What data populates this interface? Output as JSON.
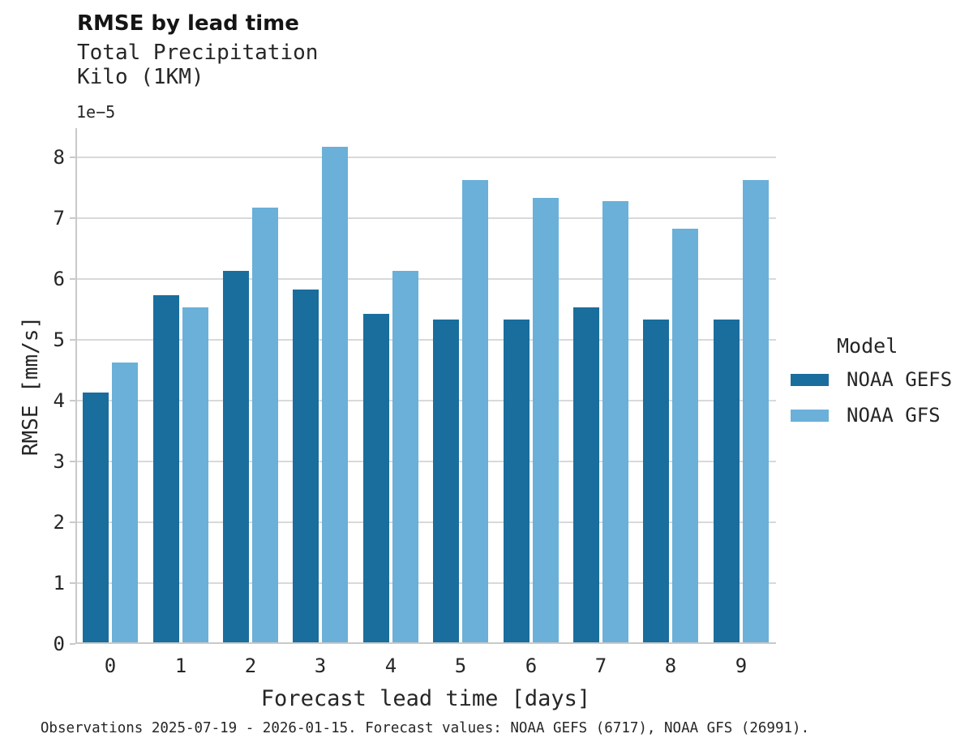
{
  "chart_data": {
    "type": "bar",
    "title": "RMSE by lead time",
    "subtitle": "Total Precipitation\nKilo (1KM)",
    "axis_offset_label": "1e−5",
    "y_unit_multiplier": "1e-5",
    "xlabel": "Forecast lead time [days]",
    "ylabel": "RMSE [mm/s]",
    "categories": [
      "0",
      "1",
      "2",
      "3",
      "4",
      "5",
      "6",
      "7",
      "8",
      "9"
    ],
    "series": [
      {
        "name": "NOAA GEFS",
        "color": "#1a6e9d",
        "values": [
          4.1,
          5.7,
          6.1,
          5.8,
          5.4,
          5.3,
          5.3,
          5.5,
          5.3,
          5.3
        ]
      },
      {
        "name": "NOAA GFS",
        "color": "#6ab0d8",
        "values": [
          4.6,
          5.5,
          7.15,
          8.15,
          6.1,
          7.6,
          7.3,
          7.25,
          6.8,
          7.6
        ]
      }
    ],
    "ylim": [
      0,
      8.48
    ],
    "yticks": [
      0,
      1,
      2,
      3,
      4,
      5,
      6,
      7,
      8
    ],
    "grid": "horizontal gridlines, light gray, axis below bars",
    "legend_title": "Model",
    "legend_position": "right",
    "caption": "Observations 2025-07-19 - 2026-01-15. Forecast values: NOAA GEFS (6717), NOAA GFS (26991)."
  },
  "colors": {
    "noaa_gefs": "#1a6e9d",
    "noaa_gfs": "#6ab0d8",
    "gridline": "#d9d9d9",
    "spine": "#c9c9c9",
    "text": "#262626"
  }
}
